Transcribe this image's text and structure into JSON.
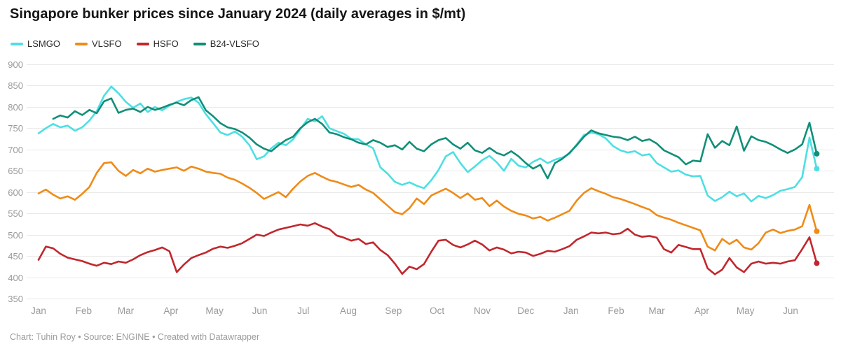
{
  "header": {
    "title": "Singapore bunker prices since January 2024 (daily averages in $/mt)"
  },
  "footer": {
    "text": "Chart: Tuhin Roy • Source: ENGINE • Created with Datawrapper"
  },
  "colors": {
    "background": "#ffffff",
    "grid": "#e9e9e9",
    "axis_label": "#9a9a9a",
    "title": "#151515",
    "legend_label": "#2b2b2b",
    "footer": "#9b9b9b"
  },
  "chart_data": {
    "type": "line",
    "title": "Singapore bunker prices since January 2024 (daily averages in $/mt)",
    "unit": "$/mt",
    "grid": true,
    "legend_position": "top-left",
    "ylim": [
      350,
      900
    ],
    "y_ticks": [
      900,
      850,
      800,
      750,
      700,
      650,
      600,
      550,
      500,
      450,
      400,
      350
    ],
    "x_day_step": 5,
    "x_total_days": 535,
    "x_month_ticks": {
      "labels": [
        "Jan",
        "Feb",
        "Mar",
        "Apr",
        "May",
        "Jun",
        "Jul",
        "Aug",
        "Sep",
        "Oct",
        "Nov",
        "Dec",
        "Jan",
        "Feb",
        "Mar",
        "Apr",
        "May",
        "Jun"
      ],
      "day_offsets": [
        0,
        31,
        60,
        91,
        121,
        152,
        182,
        213,
        244,
        274,
        305,
        335,
        366,
        397,
        425,
        456,
        486,
        517
      ]
    },
    "series": [
      {
        "name": "LSMGO",
        "color": "#4ddfe3",
        "end_value": 655,
        "values": [
          738,
          750,
          760,
          752,
          756,
          744,
          752,
          768,
          790,
          826,
          848,
          832,
          812,
          798,
          808,
          788,
          800,
          792,
          803,
          812,
          818,
          822,
          810,
          783,
          762,
          740,
          734,
          742,
          730,
          710,
          677,
          684,
          703,
          716,
          710,
          724,
          748,
          772,
          766,
          778,
          750,
          743,
          737,
          725,
          724,
          712,
          703,
          658,
          643,
          624,
          617,
          623,
          615,
          609,
          628,
          652,
          684,
          694,
          668,
          647,
          660,
          675,
          685,
          670,
          650,
          678,
          662,
          658,
          671,
          679,
          668,
          676,
          681,
          690,
          712,
          734,
          740,
          736,
          726,
          708,
          698,
          693,
          696,
          686,
          689,
          668,
          658,
          648,
          651,
          641,
          637,
          638,
          592,
          579,
          588,
          601,
          590,
          597,
          578,
          591,
          586,
          593,
          603,
          607,
          612,
          635,
          728,
          655
        ]
      },
      {
        "name": "VLSFO",
        "color": "#ef8b17",
        "end_value": 508,
        "values": [
          597,
          606,
          594,
          585,
          590,
          582,
          596,
          612,
          645,
          668,
          670,
          650,
          638,
          652,
          644,
          655,
          648,
          652,
          655,
          658,
          650,
          660,
          655,
          648,
          645,
          643,
          634,
          629,
          620,
          610,
          598,
          584,
          592,
          600,
          588,
          608,
          625,
          638,
          645,
          636,
          628,
          624,
          618,
          612,
          617,
          606,
          598,
          583,
          568,
          553,
          548,
          562,
          585,
          572,
          592,
          600,
          608,
          598,
          586,
          597,
          582,
          586,
          567,
          580,
          566,
          556,
          549,
          545,
          538,
          542,
          533,
          540,
          548,
          556,
          580,
          598,
          609,
          602,
          596,
          588,
          584,
          578,
          572,
          565,
          559,
          546,
          540,
          535,
          528,
          522,
          516,
          510,
          472,
          463,
          490,
          478,
          488,
          470,
          465,
          480,
          505,
          512,
          504,
          509,
          512,
          520,
          570,
          508
        ]
      },
      {
        "name": "HSFO",
        "color": "#c1272d",
        "end_value": 433,
        "values": [
          441,
          472,
          468,
          455,
          446,
          442,
          438,
          432,
          427,
          434,
          431,
          437,
          434,
          442,
          452,
          459,
          464,
          470,
          461,
          412,
          430,
          445,
          452,
          458,
          467,
          472,
          469,
          474,
          480,
          490,
          500,
          497,
          505,
          512,
          516,
          520,
          524,
          521,
          527,
          519,
          513,
          498,
          493,
          486,
          490,
          478,
          482,
          464,
          452,
          432,
          408,
          425,
          419,
          431,
          460,
          486,
          488,
          476,
          470,
          477,
          486,
          477,
          463,
          470,
          465,
          456,
          460,
          458,
          450,
          455,
          462,
          460,
          466,
          473,
          488,
          496,
          505,
          503,
          505,
          501,
          503,
          514,
          500,
          495,
          497,
          493,
          466,
          458,
          476,
          471,
          466,
          466,
          421,
          407,
          418,
          445,
          423,
          412,
          432,
          437,
          432,
          434,
          432,
          437,
          440,
          466,
          494,
          433
        ]
      },
      {
        "name": "B24-VLSFO",
        "color": "#108f78",
        "end_value": 690,
        "values": [
          null,
          null,
          772,
          780,
          775,
          790,
          781,
          793,
          785,
          813,
          820,
          786,
          793,
          796,
          788,
          800,
          793,
          798,
          805,
          810,
          804,
          816,
          823,
          792,
          778,
          762,
          752,
          748,
          740,
          728,
          712,
          702,
          696,
          710,
          722,
          730,
          750,
          764,
          772,
          760,
          740,
          736,
          729,
          724,
          716,
          712,
          722,
          716,
          706,
          710,
          700,
          718,
          702,
          696,
          712,
          722,
          727,
          712,
          702,
          716,
          698,
          692,
          704,
          692,
          686,
          696,
          684,
          668,
          655,
          664,
          632,
          668,
          678,
          692,
          710,
          730,
          745,
          738,
          734,
          730,
          728,
          722,
          730,
          720,
          724,
          714,
          698,
          690,
          682,
          665,
          674,
          672,
          736,
          704,
          720,
          710,
          754,
          697,
          731,
          722,
          718,
          710,
          700,
          692,
          700,
          712,
          763,
          690
        ]
      }
    ]
  }
}
